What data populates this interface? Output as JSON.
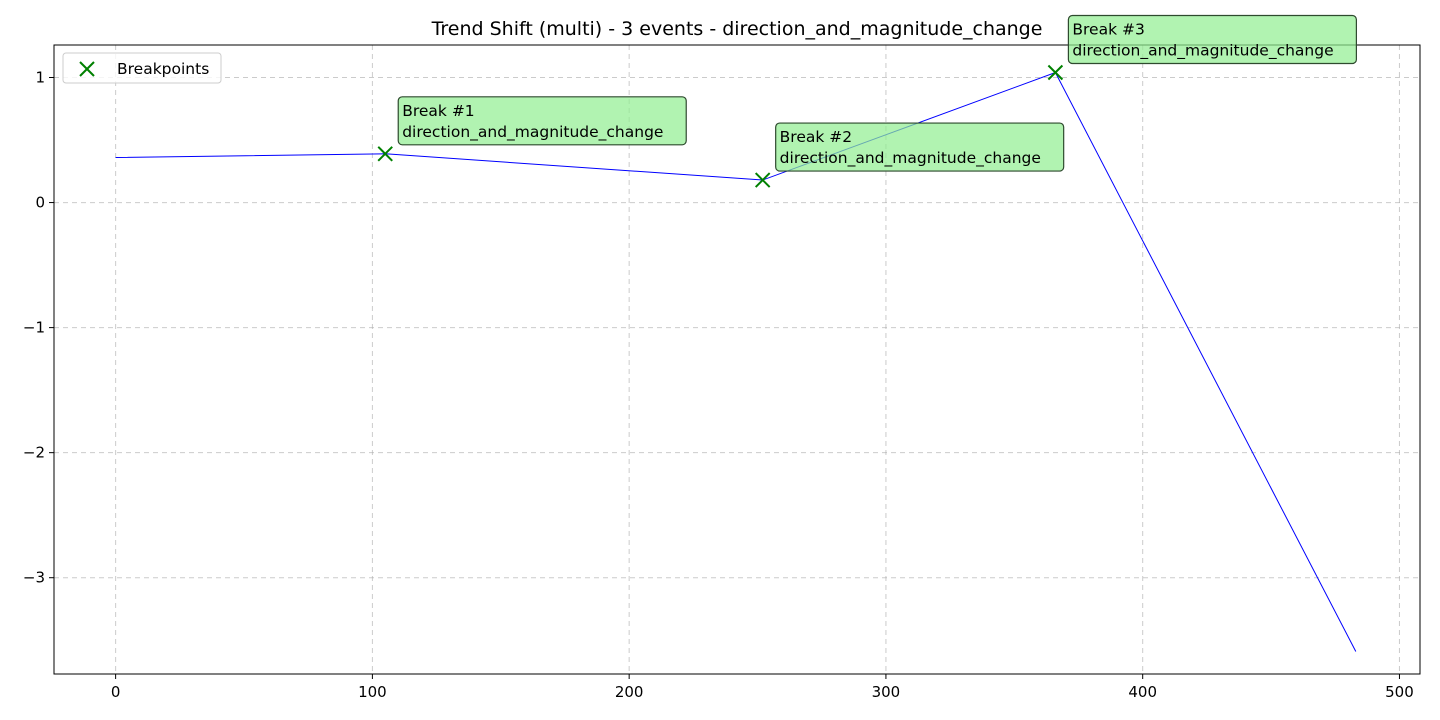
{
  "chart_data": {
    "type": "line",
    "title": "Trend Shift (multi) - 3 events - direction_and_magnitude_change",
    "xlabel": "",
    "ylabel": "",
    "xlim": [
      -24,
      508
    ],
    "ylim": [
      -3.77,
      1.26
    ],
    "x_ticks": [
      0,
      100,
      200,
      300,
      400,
      500
    ],
    "y_ticks": [
      1,
      0,
      -1,
      -2,
      -3
    ],
    "y_tick_labels": [
      "1",
      "0",
      "−1",
      "−2",
      "−3"
    ],
    "grid": true,
    "series": [
      {
        "color": "#0000ff",
        "x": [
          0,
          105,
          252,
          366,
          483
        ],
        "y": [
          0.36,
          0.39,
          0.18,
          1.04,
          -3.59
        ]
      }
    ],
    "breakpoints": {
      "name": "Breakpoints",
      "color": "#008000",
      "x": [
        105,
        252,
        366
      ],
      "y": [
        0.39,
        0.18,
        1.04
      ]
    },
    "annotations": [
      {
        "line1": "Break #1",
        "line2": "direction_and_magnitude_change"
      },
      {
        "line1": "Break #2",
        "line2": "direction_and_magnitude_change"
      },
      {
        "line1": "Break #3",
        "line2": "direction_and_magnitude_change"
      }
    ],
    "legend": {
      "placement": "top-left",
      "label": "Breakpoints"
    }
  }
}
